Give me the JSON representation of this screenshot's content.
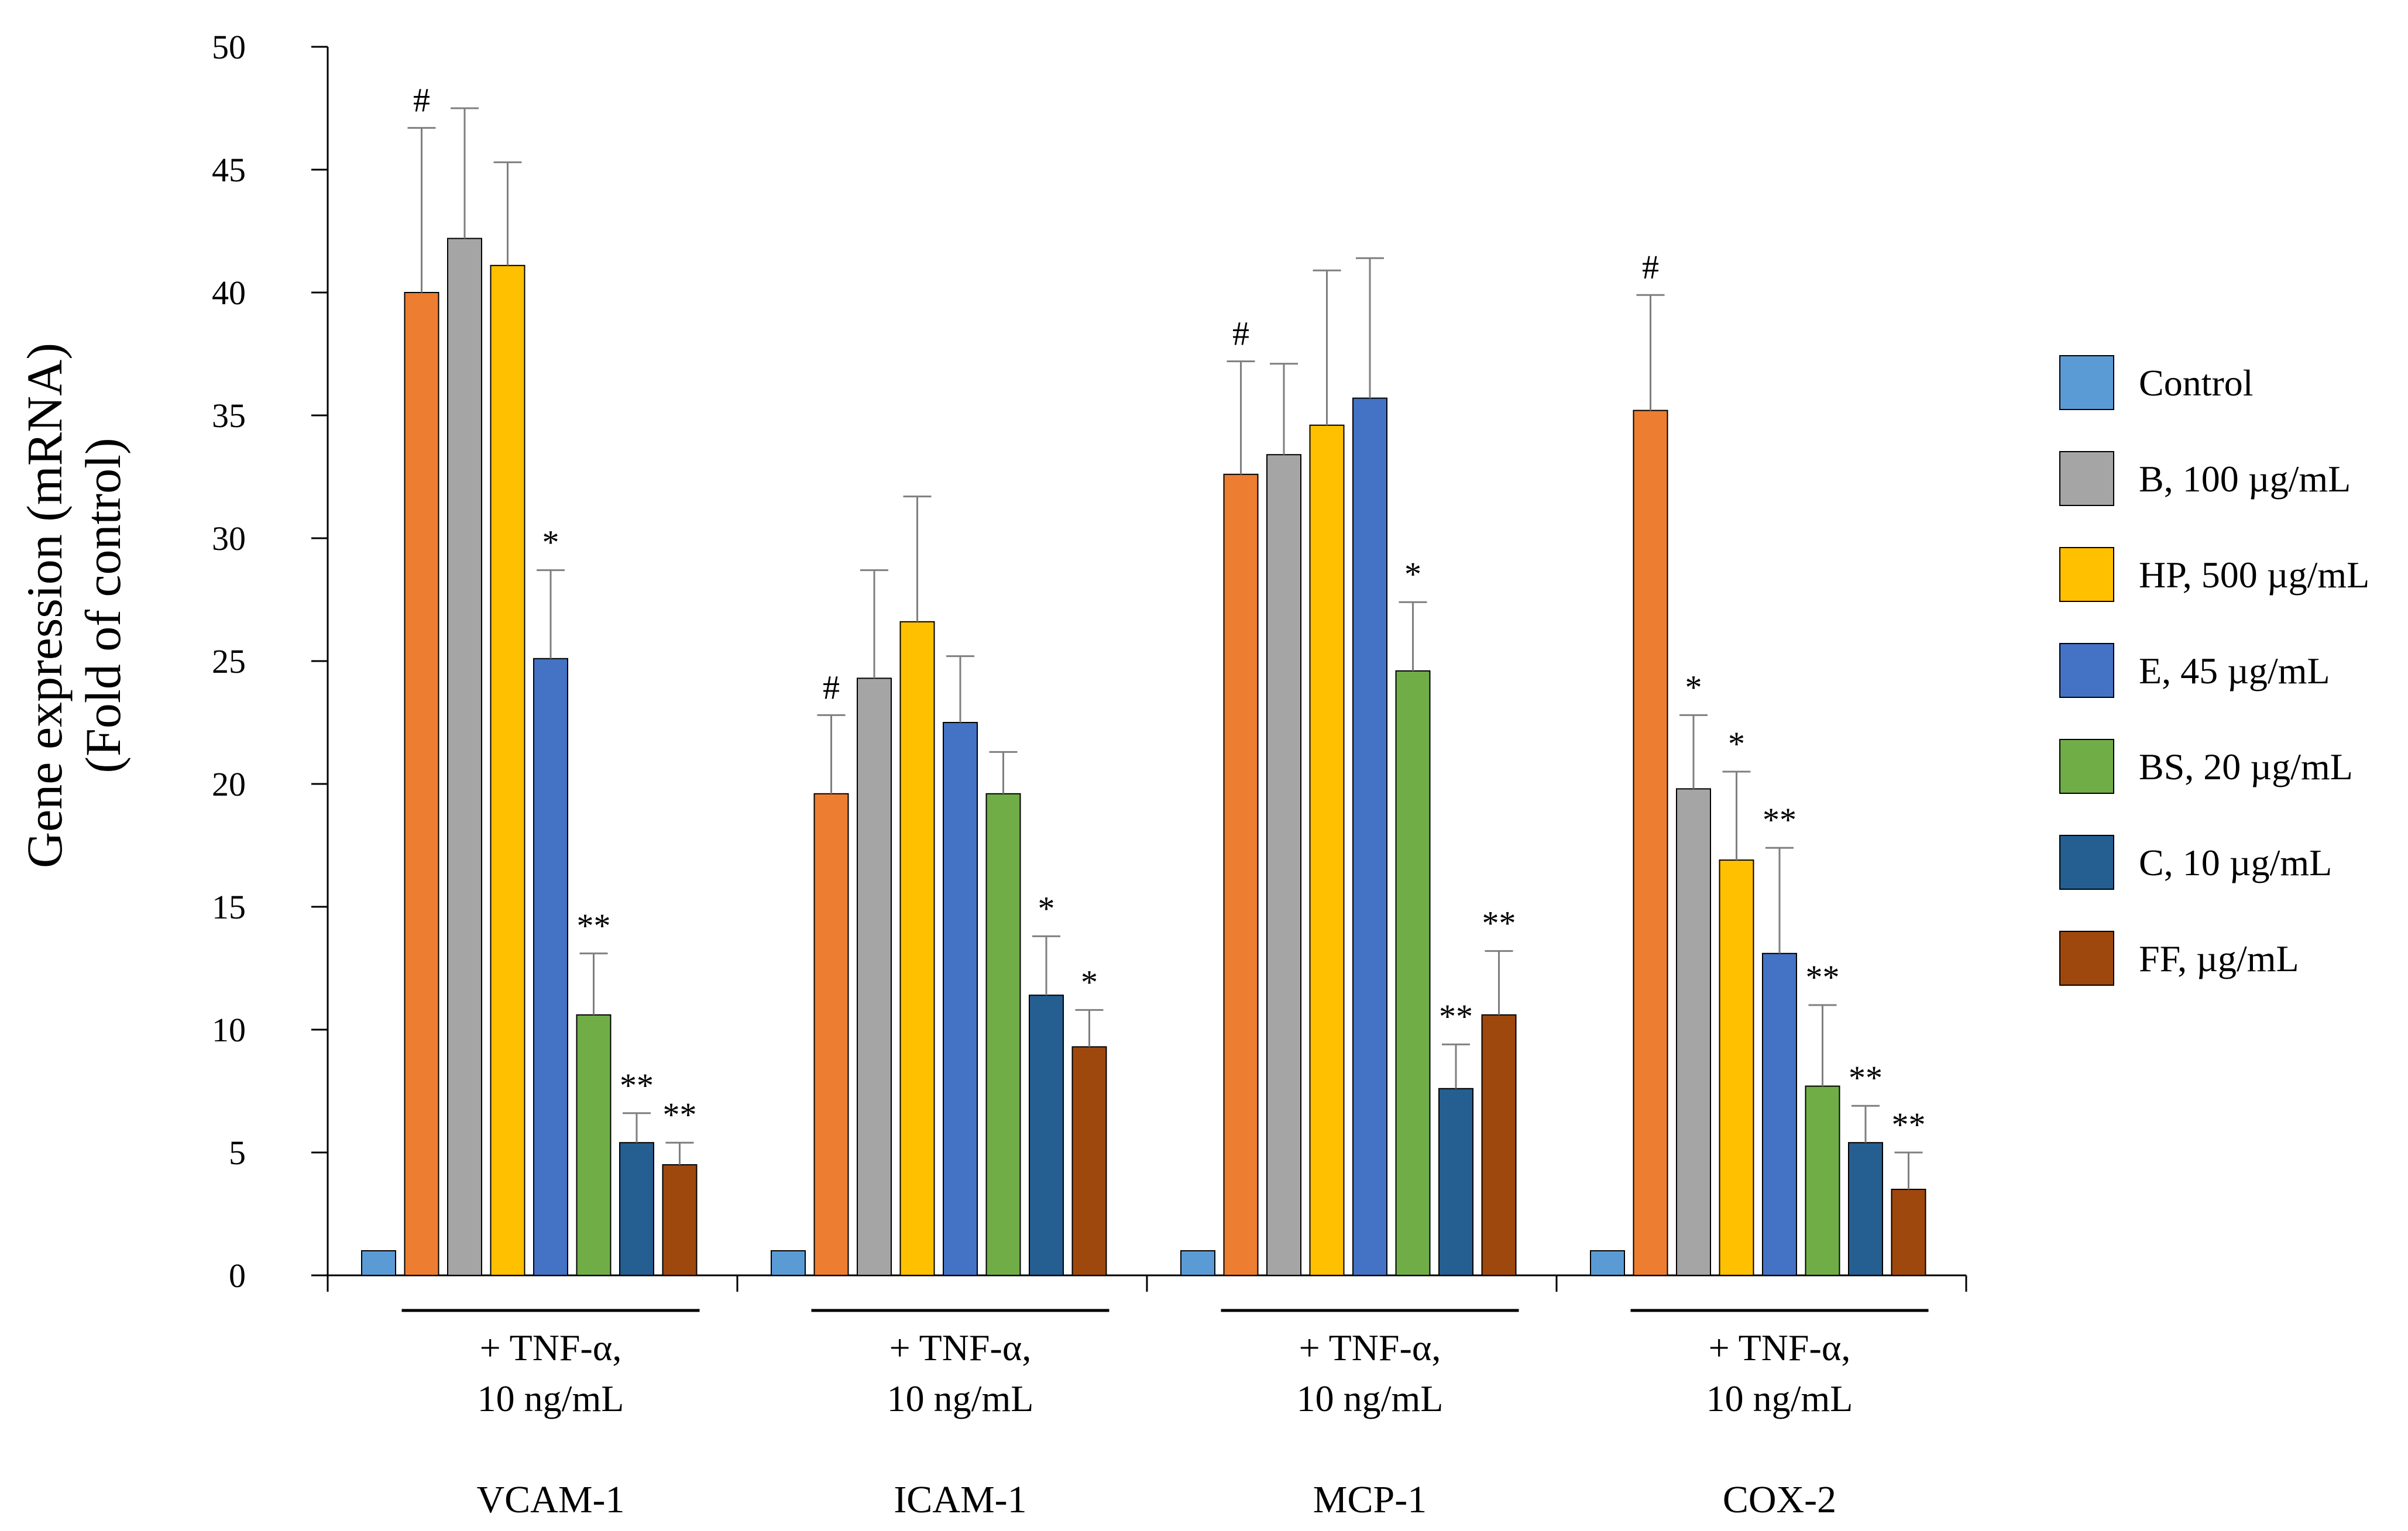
{
  "chart_data": {
    "type": "bar",
    "ylabel_line1": "Gene expression (mRNA)",
    "ylabel_line2": "(Fold of control)",
    "ylim": [
      0,
      50
    ],
    "yticks": [
      0,
      5,
      10,
      15,
      20,
      25,
      30,
      35,
      40,
      45,
      50
    ],
    "categories": [
      "VCAM-1",
      "ICAM-1",
      "MCP-1",
      "COX-2"
    ],
    "treatment_label_line1": "+ TNF-α,",
    "treatment_label_line2": "10 ng/mL",
    "legend_position": "right",
    "series": [
      {
        "name": "Control",
        "color": "#5B9BD5",
        "values": [
          1,
          1,
          1,
          1
        ],
        "errors": [
          0,
          0,
          0,
          0
        ],
        "marks": [
          "",
          "",
          "",
          ""
        ]
      },
      {
        "name": "B, 100 µg/mL",
        "color": "#ED7D31",
        "values": [
          40,
          19.6,
          32.6,
          35.2
        ],
        "errors": [
          6.7,
          3.2,
          4.6,
          4.7
        ],
        "marks": [
          "",
          "",
          "",
          ""
        ]
      },
      {
        "name": "HP, 500 µg/mL",
        "color": "#A5A5A5",
        "values": [
          42.2,
          24.3,
          33.4,
          19.8
        ],
        "errors": [
          5.3,
          4.4,
          3.7,
          3.0
        ],
        "marks": [
          "",
          "",
          "",
          ""
        ]
      },
      {
        "name": "E, 45 µg/mL",
        "color": "#FFC000",
        "values": [
          41.1,
          26.6,
          34.6,
          16.9
        ],
        "errors": [
          4.2,
          5.1,
          6.3,
          3.6
        ],
        "marks": [
          "",
          "",
          "",
          ""
        ]
      },
      {
        "name": "BS, 20 µg/mL",
        "color": "#4472C4",
        "values": [
          25.1,
          22.5,
          35.7,
          13.1
        ],
        "errors": [
          3.6,
          2.7,
          5.7,
          4.3
        ],
        "marks": [
          "",
          "",
          "",
          ""
        ]
      },
      {
        "name": "C, 10 µg/mL",
        "color": "#70AD47",
        "values": [
          10.6,
          19.6,
          24.6,
          7.7
        ],
        "errors": [
          2.5,
          1.7,
          2.8,
          3.3
        ],
        "marks": [
          "",
          "",
          "",
          ""
        ]
      },
      {
        "name": "FF, µg/mL",
        "color": "#255E91",
        "values": [
          5.4,
          11.4,
          7.6,
          5.4
        ],
        "errors": [
          1.2,
          2.4,
          1.8,
          1.5
        ],
        "marks": [
          "",
          "",
          "",
          ""
        ]
      },
      {
        "name": "",
        "color": "#9E480E",
        "values": [
          4.5,
          9.3,
          10.6,
          3.5
        ],
        "errors": [
          0.9,
          1.5,
          2.6,
          1.5
        ],
        "marks": [
          "",
          "",
          "",
          ""
        ]
      }
    ],
    "annotations": {
      "VCAM-1": [
        "",
        "#",
        "",
        "",
        "*",
        "**",
        "**",
        "**"
      ],
      "ICAM-1": [
        "",
        "#",
        "",
        "",
        "",
        "",
        "*",
        "*"
      ],
      "MCP-1": [
        "",
        "#",
        "",
        "",
        "",
        "*",
        "**",
        "**"
      ],
      "COX-2": [
        "",
        "#",
        "*",
        "*",
        "**",
        "**",
        "**",
        "**"
      ]
    },
    "legend": [
      {
        "label": "Control",
        "color": "#5B9BD5"
      },
      {
        "label": "B, 100 µg/mL",
        "color": "#A5A5A5"
      },
      {
        "label": "HP, 500 µg/mL",
        "color": "#FFC000"
      },
      {
        "label": "E, 45 µg/mL",
        "color": "#4472C4"
      },
      {
        "label": "BS, 20 µg/mL",
        "color": "#70AD47"
      },
      {
        "label": "C, 10 µg/mL",
        "color": "#255E91"
      },
      {
        "label": "FF, µg/mL",
        "color": "#9E480E"
      }
    ]
  }
}
